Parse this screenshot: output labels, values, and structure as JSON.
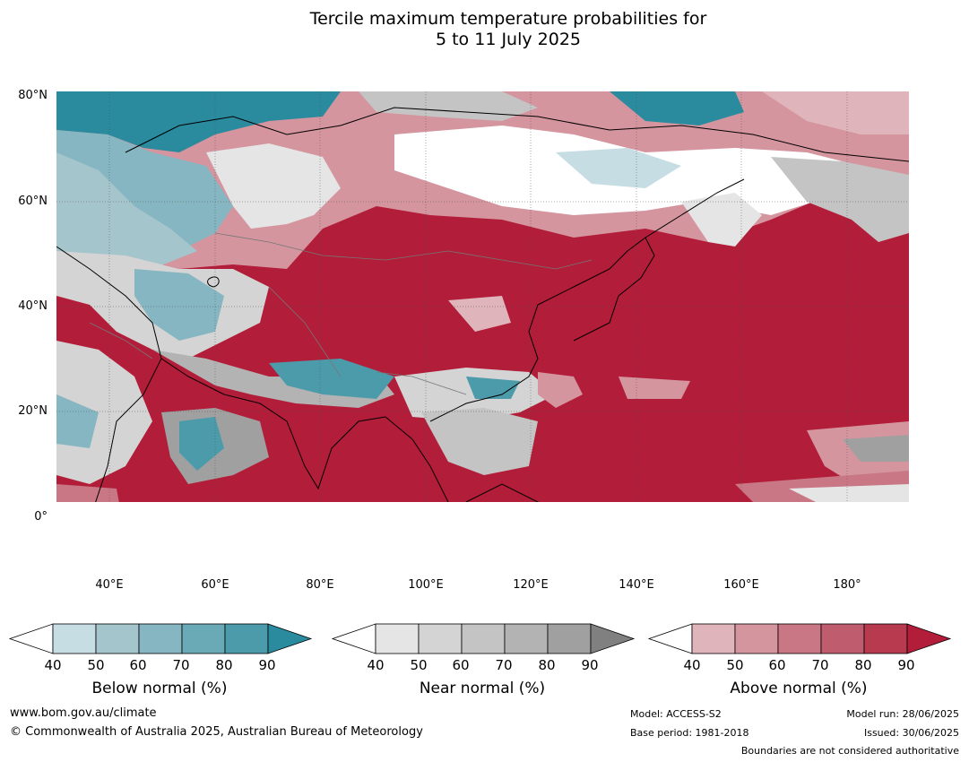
{
  "title_line1": "Tercile maximum temperature probabilities for",
  "title_line2": "5 to 11 July 2025",
  "map": {
    "lat_ticks": [
      "80°N",
      "60°N",
      "40°N",
      "20°N",
      "0°"
    ],
    "lon_ticks": [
      "40°E",
      "60°E",
      "80°E",
      "100°E",
      "120°E",
      "140°E",
      "160°E",
      "180°"
    ]
  },
  "colorbars": [
    {
      "name": "below",
      "label": "Below normal (%)",
      "ticks": [
        "40",
        "50",
        "60",
        "70",
        "80",
        "90"
      ],
      "colors": [
        "#c6dde4",
        "#a4c5cc",
        "#86b6c1",
        "#6aa9b6",
        "#4b9bab",
        "#2a8a9e"
      ]
    },
    {
      "name": "near",
      "label": "Near normal (%)",
      "ticks": [
        "40",
        "50",
        "60",
        "70",
        "80",
        "90"
      ],
      "colors": [
        "#e5e5e5",
        "#d4d4d4",
        "#c4c4c4",
        "#b3b3b3",
        "#a0a0a0",
        "#808080"
      ]
    },
    {
      "name": "above",
      "label": "Above normal (%)",
      "ticks": [
        "40",
        "50",
        "60",
        "70",
        "80",
        "90"
      ],
      "colors": [
        "#dfb4bb",
        "#d4959f",
        "#c97784",
        "#bf5c6d",
        "#b83a4e",
        "#b21d39"
      ]
    }
  ],
  "footer": {
    "website": "www.bom.gov.au/climate",
    "copyright": "© Commonwealth of Australia 2025, Australian Bureau of Meteorology",
    "model": "Model: ACCESS-S2",
    "base_period": "Base period: 1981-2018",
    "model_run": "Model run: 28/06/2025",
    "issued": "Issued: 30/06/2025",
    "disclaimer": "Boundaries are not considered authoritative"
  }
}
